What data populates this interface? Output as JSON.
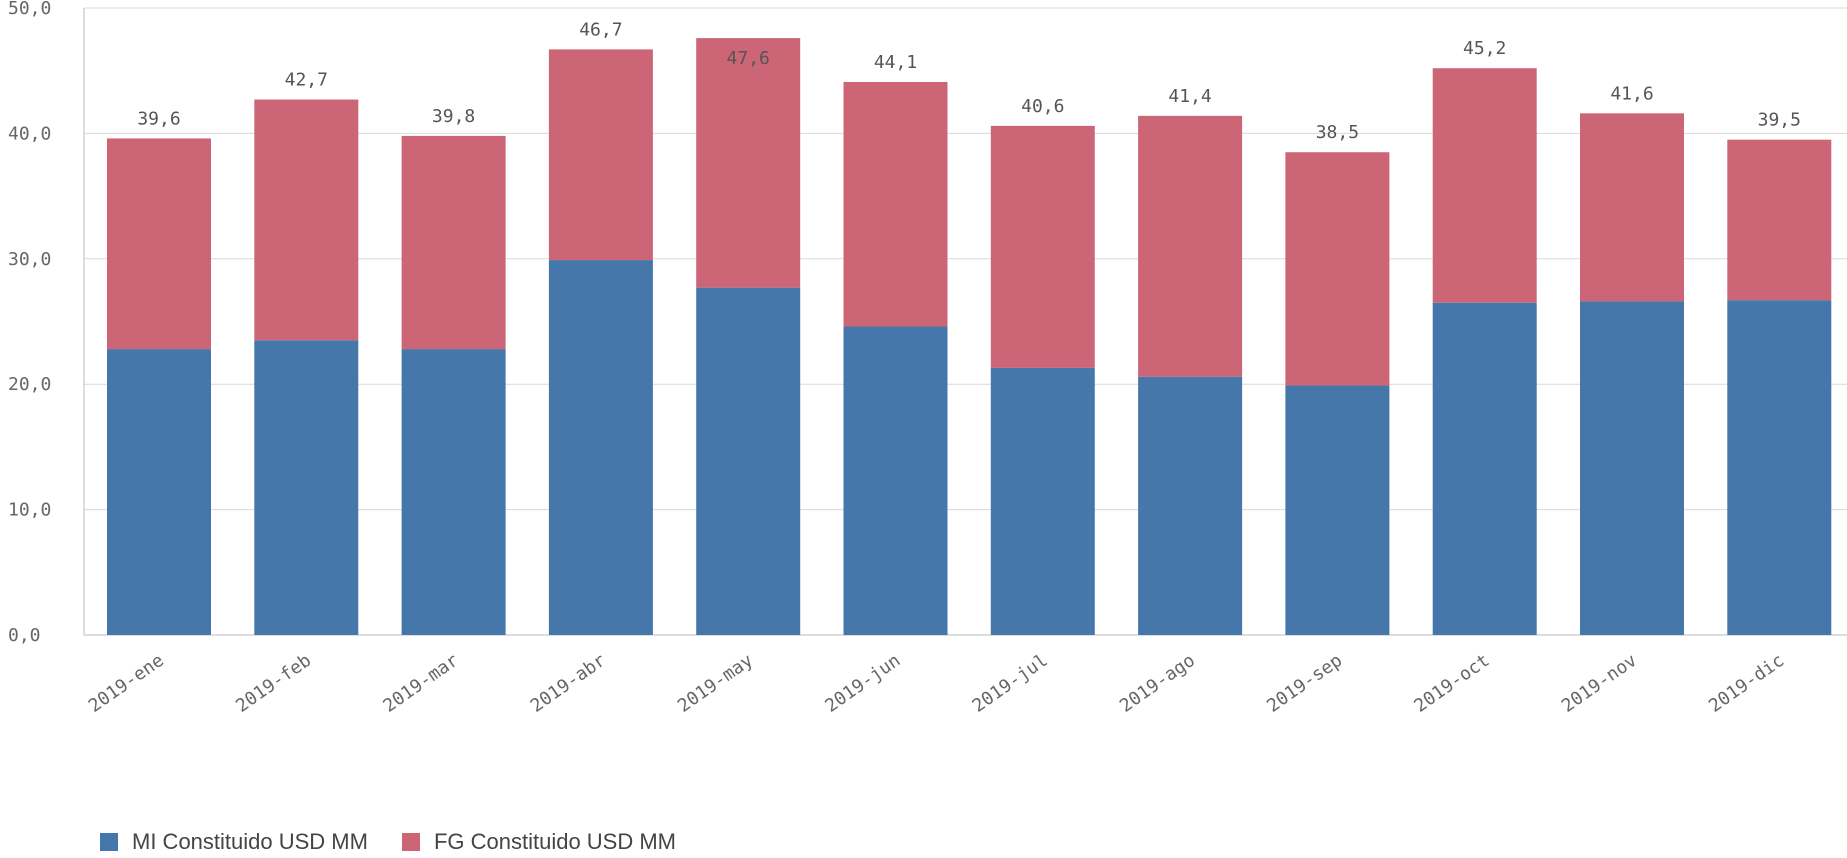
{
  "chart_data": {
    "type": "bar",
    "stacked": true,
    "categories": [
      "2019-ene",
      "2019-feb",
      "2019-mar",
      "2019-abr",
      "2019-may",
      "2019-jun",
      "2019-jul",
      "2019-ago",
      "2019-sep",
      "2019-oct",
      "2019-nov",
      "2019-dic"
    ],
    "series": [
      {
        "name": "MI Constituido USD MM",
        "color": "#4577aa",
        "values": [
          22.8,
          23.5,
          22.8,
          29.9,
          27.7,
          24.6,
          21.3,
          20.6,
          19.9,
          26.5,
          26.6,
          26.7
        ]
      },
      {
        "name": "FG Constituido USD MM",
        "color": "#cc6677",
        "values": [
          16.8,
          19.2,
          17.0,
          16.8,
          19.9,
          19.5,
          19.3,
          20.8,
          18.6,
          18.7,
          15.0,
          12.8
        ]
      }
    ],
    "totals": [
      "39,6",
      "42,7",
      "39,8",
      "46,7",
      "47,6",
      "44,1",
      "40,6",
      "41,4",
      "38,5",
      "45,2",
      "41,6",
      "39,5"
    ],
    "y_ticks": [
      "0,0",
      "10,0",
      "20,0",
      "30,0",
      "40,0",
      "50,0"
    ],
    "ylim": [
      0,
      50
    ],
    "grid": true,
    "legend_position": "bottom-left"
  }
}
